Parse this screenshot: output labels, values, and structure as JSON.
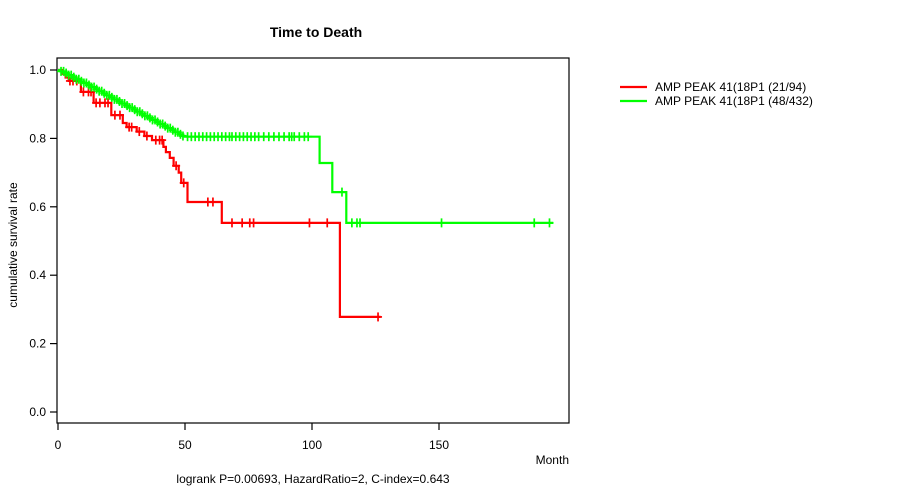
{
  "chart_data": {
    "type": "line",
    "subtype": "kaplan-meier-step-survival",
    "title": "Time to Death",
    "xlabel": "Month",
    "ylabel": "cumulative survival rate",
    "caption": "logrank P=0.00693, HazardRatio=2, C-index=0.643",
    "xlim": [
      0,
      201
    ],
    "ylim": [
      0.0,
      1.0
    ],
    "xticks": [
      "0",
      "50",
      "100",
      "150"
    ],
    "yticks": [
      "0.0",
      "0.2",
      "0.4",
      "0.6",
      "0.8",
      "1.0"
    ],
    "grid": false,
    "legend_position": "right-outside",
    "background_color": "#ffffff",
    "axis_color": "#000000",
    "series": [
      {
        "id": "red",
        "name": "AMP PEAK 41(18P1 (21/94)",
        "color": "#ff0000",
        "events_over_n": "21/94",
        "end_month": 127,
        "steps": [
          [
            0,
            1.0
          ],
          [
            1.5,
            0.989
          ],
          [
            3,
            0.978
          ],
          [
            4.2,
            0.968
          ],
          [
            9,
            0.936
          ],
          [
            14,
            0.904
          ],
          [
            21,
            0.868
          ],
          [
            25.5,
            0.845
          ],
          [
            27,
            0.833
          ],
          [
            31,
            0.82
          ],
          [
            34,
            0.807
          ],
          [
            37,
            0.795
          ],
          [
            41.5,
            0.775
          ],
          [
            42.5,
            0.76
          ],
          [
            44,
            0.743
          ],
          [
            45.5,
            0.72
          ],
          [
            47.5,
            0.7
          ],
          [
            48.5,
            0.67
          ],
          [
            51,
            0.614
          ],
          [
            64.5,
            0.553
          ],
          [
            111,
            0.278
          ]
        ],
        "censor_months": [
          4.7,
          5.9,
          7.4,
          10,
          12,
          13,
          15,
          16.5,
          18.5,
          19.7,
          22.4,
          24.4,
          28,
          29,
          32,
          35,
          38.5,
          40,
          41,
          46.5,
          49.5,
          59,
          61,
          68.5,
          72.5,
          75.5,
          77,
          99,
          106,
          126
        ]
      },
      {
        "id": "green",
        "name": "AMP PEAK 41(18P1 (48/432)",
        "color": "#00ff00",
        "events_over_n": "48/432",
        "end_month": 195,
        "steps": [
          [
            0,
            1.0
          ],
          [
            1,
            0.996
          ],
          [
            2.5,
            0.991
          ],
          [
            4,
            0.985
          ],
          [
            5.5,
            0.979
          ],
          [
            7,
            0.973
          ],
          [
            8.5,
            0.967
          ],
          [
            10,
            0.962
          ],
          [
            11.5,
            0.956
          ],
          [
            13,
            0.95
          ],
          [
            14.5,
            0.944
          ],
          [
            16,
            0.938
          ],
          [
            17.5,
            0.932
          ],
          [
            19,
            0.926
          ],
          [
            20.5,
            0.92
          ],
          [
            22,
            0.914
          ],
          [
            23.5,
            0.908
          ],
          [
            25,
            0.902
          ],
          [
            26.5,
            0.896
          ],
          [
            28,
            0.89
          ],
          [
            29.5,
            0.884
          ],
          [
            31,
            0.878
          ],
          [
            32.5,
            0.872
          ],
          [
            34,
            0.866
          ],
          [
            35.5,
            0.86
          ],
          [
            37,
            0.854
          ],
          [
            38.5,
            0.848
          ],
          [
            40,
            0.842
          ],
          [
            41.5,
            0.836
          ],
          [
            43,
            0.83
          ],
          [
            44.5,
            0.824
          ],
          [
            46,
            0.818
          ],
          [
            47.5,
            0.812
          ],
          [
            49,
            0.807
          ],
          [
            50,
            0.805
          ],
          [
            103,
            0.728
          ],
          [
            108,
            0.643
          ],
          [
            113.5,
            0.553
          ]
        ],
        "censor_months": [
          1.2,
          2.2,
          3.2,
          4.2,
          5.2,
          6.2,
          7.2,
          8.2,
          9.2,
          10.2,
          11.2,
          12.2,
          13.2,
          14.2,
          15.2,
          16.2,
          17.2,
          18.2,
          19.2,
          20.2,
          21.2,
          22.2,
          23.2,
          24.2,
          25.2,
          26.2,
          27.2,
          28.2,
          29.2,
          30.2,
          31.2,
          32.2,
          33.2,
          34.2,
          35.2,
          36.2,
          37.2,
          38.2,
          39.2,
          40.2,
          41.2,
          42.2,
          43.2,
          44.2,
          45.2,
          46.2,
          47.2,
          48.2,
          49.2,
          51,
          52.5,
          54,
          55.5,
          57,
          58.5,
          60,
          61.5,
          63,
          64.5,
          66,
          67.5,
          68.5,
          70,
          71.5,
          73,
          74.5,
          76,
          77.5,
          79,
          81,
          83,
          85,
          87,
          89,
          91,
          92,
          93,
          95,
          97,
          98.5,
          111.8,
          115.7,
          117.7,
          118.9,
          151,
          187.5,
          193.5
        ]
      }
    ]
  }
}
